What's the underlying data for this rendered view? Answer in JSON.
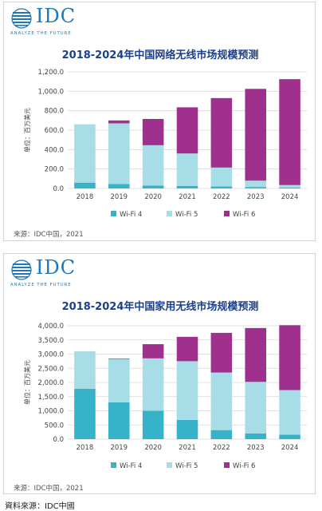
{
  "logo": {
    "text": "IDC",
    "tagline": "ANALYZE THE FUTURE"
  },
  "footer": "資料來源：IDC中國",
  "colors": {
    "wifi4": "#37b3c9",
    "wifi5": "#a7dde6",
    "wifi6": "#a0308e",
    "title": "#1b3f8c",
    "grid": "#d8d8d8"
  },
  "chart_data": [
    {
      "type": "bar",
      "stacked": true,
      "title": "2018-2024年中国网络无线市场规模预测",
      "ylabel": "单位：百万美元",
      "xlabel": "",
      "categories": [
        "2018",
        "2019",
        "2020",
        "2021",
        "2022",
        "2023",
        "2024"
      ],
      "series": [
        {
          "name": "Wi-Fi 4",
          "values": [
            60,
            45,
            30,
            25,
            20,
            15,
            10
          ]
        },
        {
          "name": "Wi-Fi 5",
          "values": [
            600,
            625,
            415,
            335,
            195,
            65,
            25
          ]
        },
        {
          "name": "Wi-Fi 6",
          "values": [
            0,
            30,
            270,
            475,
            715,
            945,
            1090
          ]
        }
      ],
      "ylim": [
        0,
        1200
      ],
      "yticks": [
        "0.0",
        "200.0",
        "400.0",
        "600.0",
        "800.0",
        "1,000.0",
        "1,200.0"
      ],
      "grid": true,
      "legend": "bottom",
      "source": "来源：IDC中国，2021"
    },
    {
      "type": "bar",
      "stacked": true,
      "title": "2018-2024年中国家用无线市场规模预测",
      "ylabel": "单位：百万美元",
      "xlabel": "",
      "categories": [
        "2018",
        "2019",
        "2020",
        "2021",
        "2022",
        "2023",
        "2024"
      ],
      "series": [
        {
          "name": "Wi-Fi 4",
          "values": [
            1780,
            1300,
            1000,
            680,
            320,
            200,
            160
          ]
        },
        {
          "name": "Wi-Fi 5",
          "values": [
            1320,
            1520,
            1850,
            2070,
            2030,
            1820,
            1570
          ]
        },
        {
          "name": "Wi-Fi 6",
          "values": [
            0,
            20,
            500,
            860,
            1400,
            1900,
            2290
          ]
        }
      ],
      "ylim": [
        0,
        4000
      ],
      "yticks": [
        "0.0",
        "500.0",
        "1,000.0",
        "1,500.0",
        "2,000.0",
        "2,500.0",
        "3,000.0",
        "3,500.0",
        "4,000.0"
      ],
      "grid": true,
      "legend": "bottom",
      "source": "来源：IDC中国，2021"
    }
  ]
}
